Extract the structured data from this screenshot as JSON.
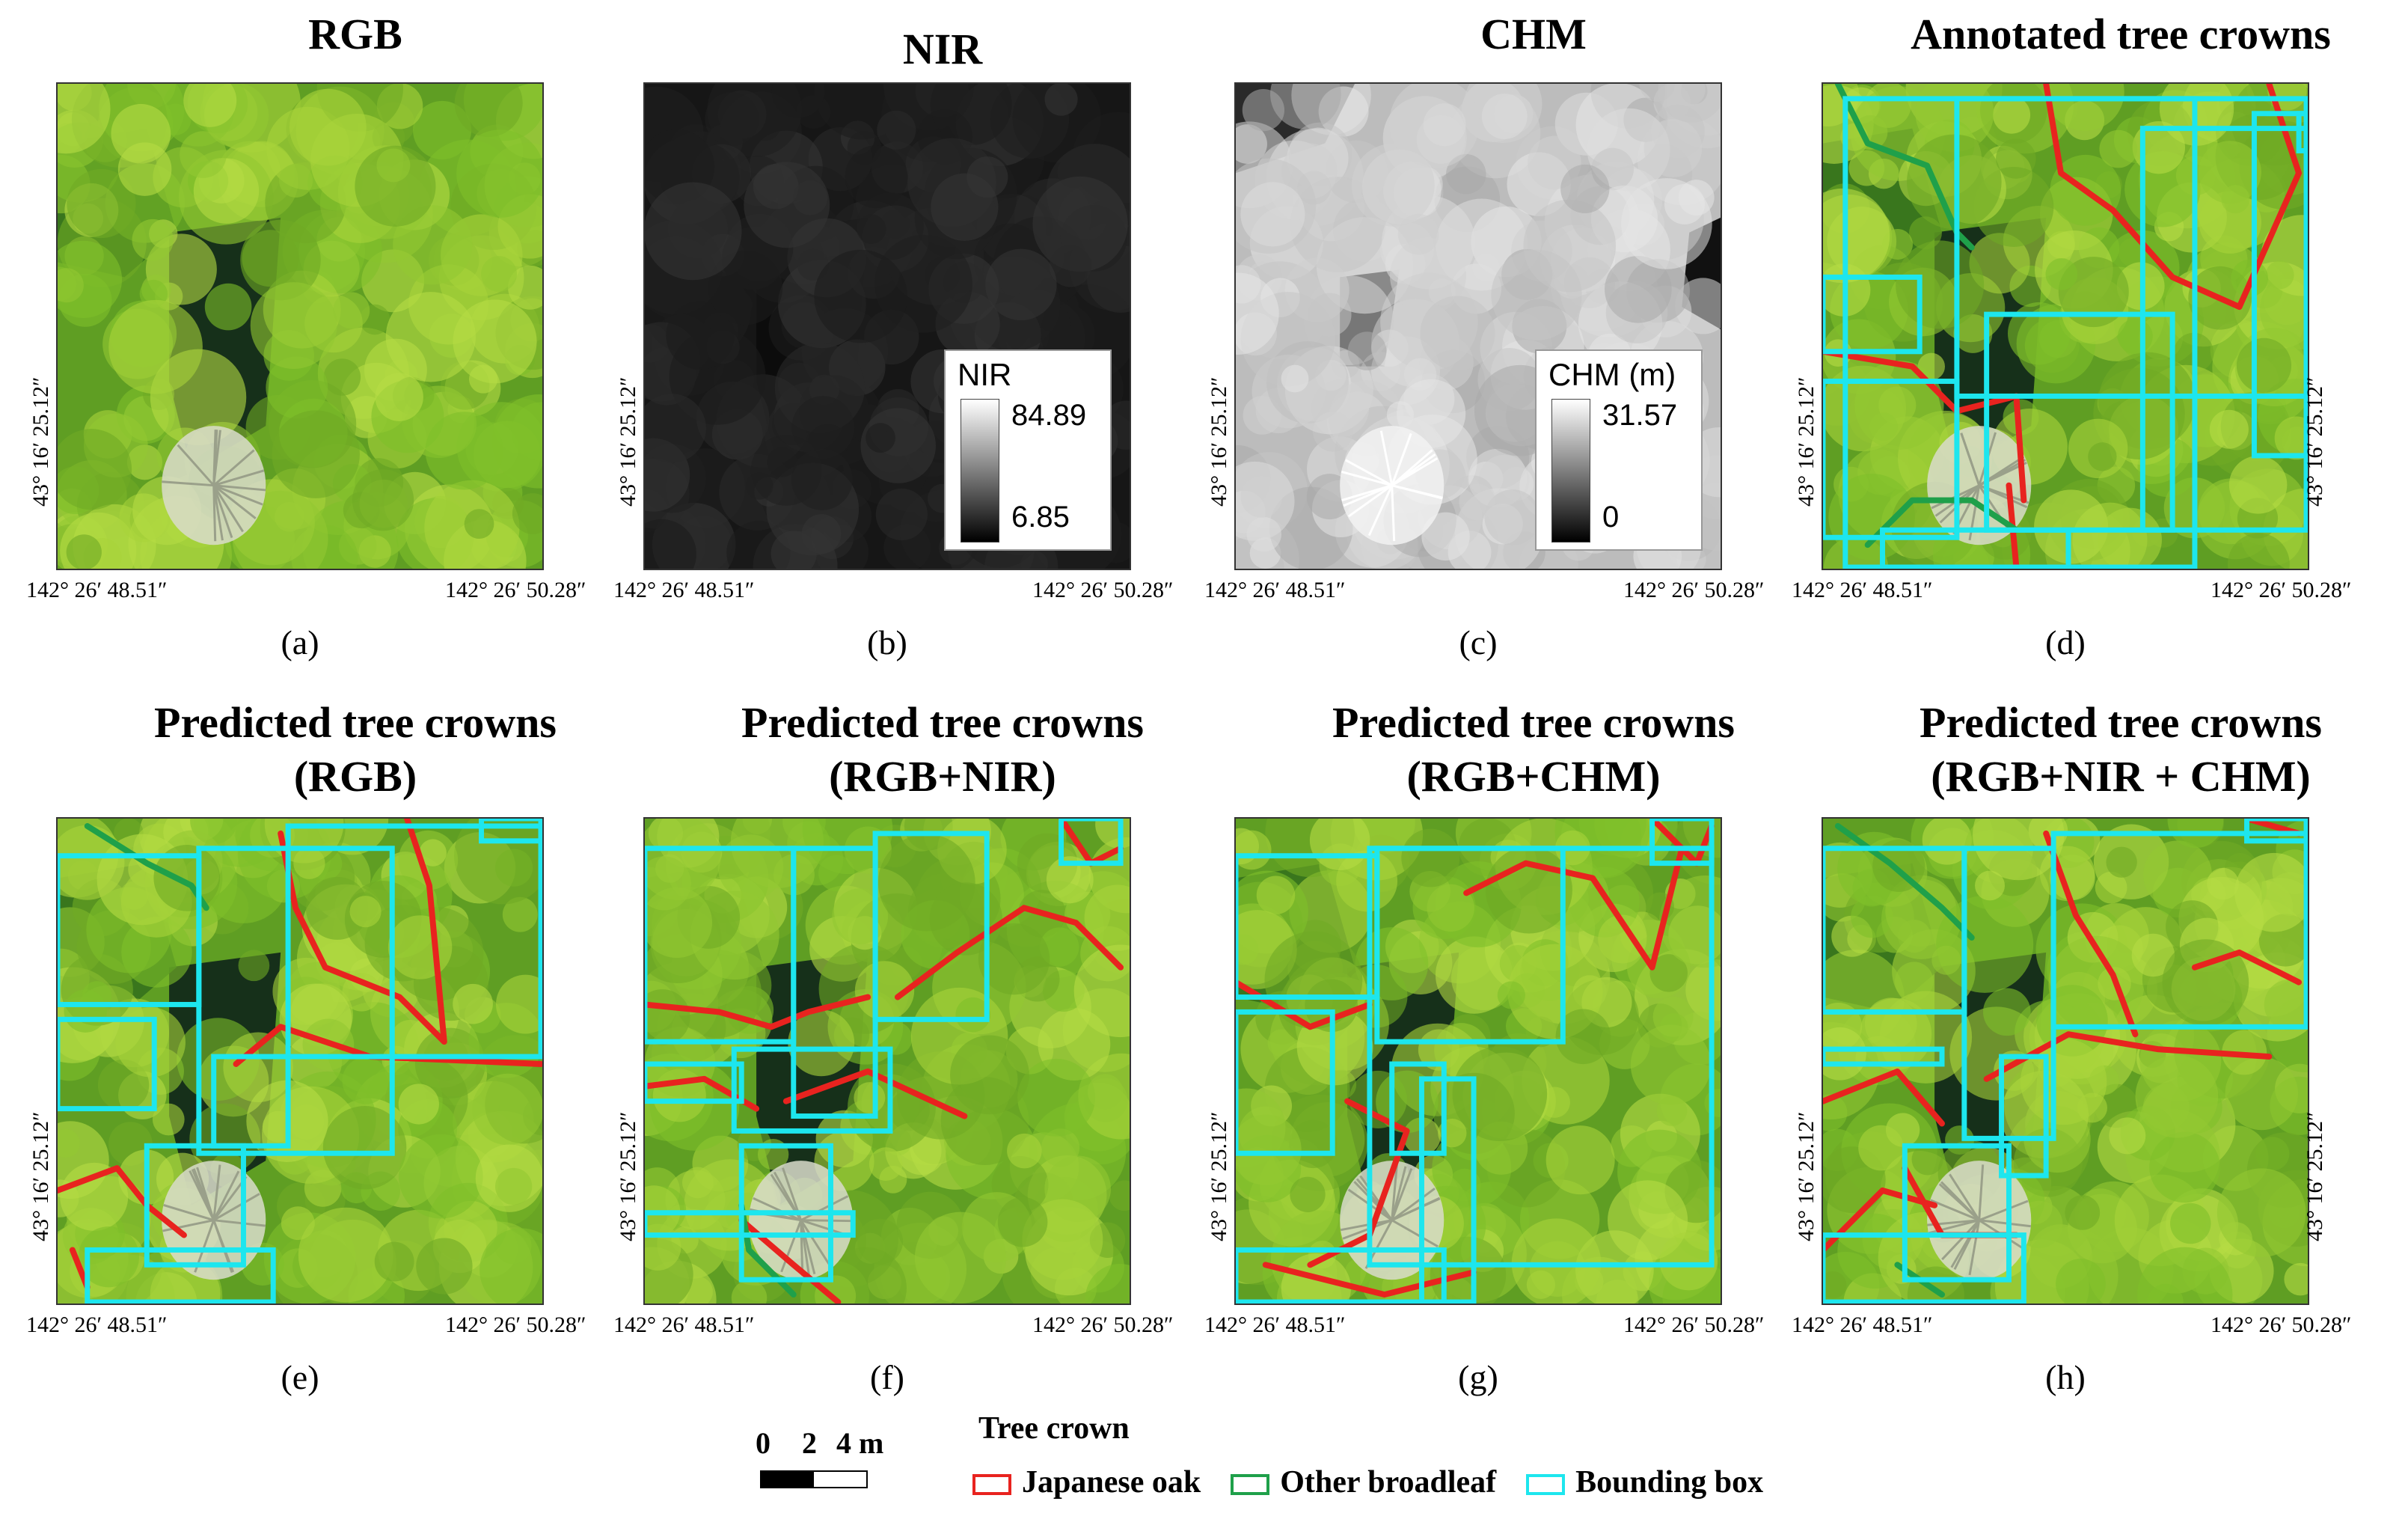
{
  "figure": {
    "panels": [
      {
        "id": "a",
        "title_lines": [
          "RGB"
        ],
        "caption": "(a)",
        "kind": "rgb",
        "boxes": false,
        "lat_label": "43° 16′ 25.12″",
        "lat_side": "left",
        "lon_left": "142° 26′ 48.51″",
        "lon_right": "142° 26′ 50.28″"
      },
      {
        "id": "b",
        "title_lines": [
          "NIR"
        ],
        "caption": "(b)",
        "kind": "nir",
        "boxes": false,
        "lat_label": "43° 16′ 25.12″",
        "lat_side": "left",
        "lon_left": "142° 26′ 48.51″",
        "lon_right": "142° 26′ 50.28″",
        "legend": {
          "title": "NIR",
          "max": "84.89",
          "min": "6.85"
        }
      },
      {
        "id": "c",
        "title_lines": [
          "CHM"
        ],
        "caption": "(c)",
        "kind": "chm",
        "boxes": false,
        "lat_label": "43° 16′ 25.12″",
        "lat_side": "left",
        "lon_left": "142° 26′ 48.51″",
        "lon_right": "142° 26′ 50.28″",
        "legend": {
          "title": "CHM (m)",
          "max": "31.57",
          "min": "0"
        }
      },
      {
        "id": "d",
        "title_lines": [
          "Annotated tree crowns"
        ],
        "caption": "(d)",
        "kind": "rgb",
        "boxes": true,
        "lat_label": "43° 16′ 25.12″",
        "lat_side": "both",
        "lon_left": "142° 26′ 48.51″",
        "lon_right": "142° 26′ 50.28″"
      },
      {
        "id": "e",
        "title_lines": [
          "Predicted tree crowns",
          "(RGB)"
        ],
        "caption": "(e)",
        "kind": "rgb",
        "boxes": true,
        "lat_label": "43° 16′ 25.12″",
        "lat_side": "left",
        "lon_left": "142° 26′ 48.51″",
        "lon_right": "142° 26′ 50.28″"
      },
      {
        "id": "f",
        "title_lines": [
          "Predicted tree crowns",
          "(RGB+NIR)"
        ],
        "caption": "(f)",
        "kind": "rgb",
        "boxes": true,
        "lat_label": "43° 16′ 25.12″",
        "lat_side": "left",
        "lon_left": "142° 26′ 48.51″",
        "lon_right": "142° 26′ 50.28″"
      },
      {
        "id": "g",
        "title_lines": [
          "Predicted tree crowns",
          "(RGB+CHM)"
        ],
        "caption": "(g)",
        "kind": "rgb",
        "boxes": true,
        "lat_label": "43° 16′ 25.12″",
        "lat_side": "left",
        "lon_left": "142° 26′ 48.51″",
        "lon_right": "142° 26′ 50.28″"
      },
      {
        "id": "h",
        "title_lines": [
          "Predicted tree crowns",
          "(RGB+NIR + CHM)"
        ],
        "caption": "(h)",
        "kind": "rgb",
        "boxes": true,
        "lat_label": "43° 16′ 25.12″",
        "lat_side": "both",
        "lon_left": "142° 26′ 48.51″",
        "lon_right": "142° 26′ 50.28″"
      }
    ],
    "scale": {
      "labels": [
        "0",
        "2",
        "4 m"
      ]
    },
    "legend": {
      "title": "Tree crown",
      "items": [
        {
          "label": "Japanese oak",
          "color": "#e8231f"
        },
        {
          "label": "Other broadleaf",
          "color": "#1fa04a"
        },
        {
          "label": "Bounding box",
          "color": "#1de6ee"
        }
      ]
    },
    "colors": {
      "canopy": "#7fbf2a",
      "canopy_light": "#a8d43a",
      "canopy_dark": "#2f6b1c",
      "gap": "#16301a",
      "dead_tree": "#d9dccb",
      "box": "#1de6ee",
      "oak": "#e8231f",
      "broadleaf": "#1fa04a"
    }
  }
}
